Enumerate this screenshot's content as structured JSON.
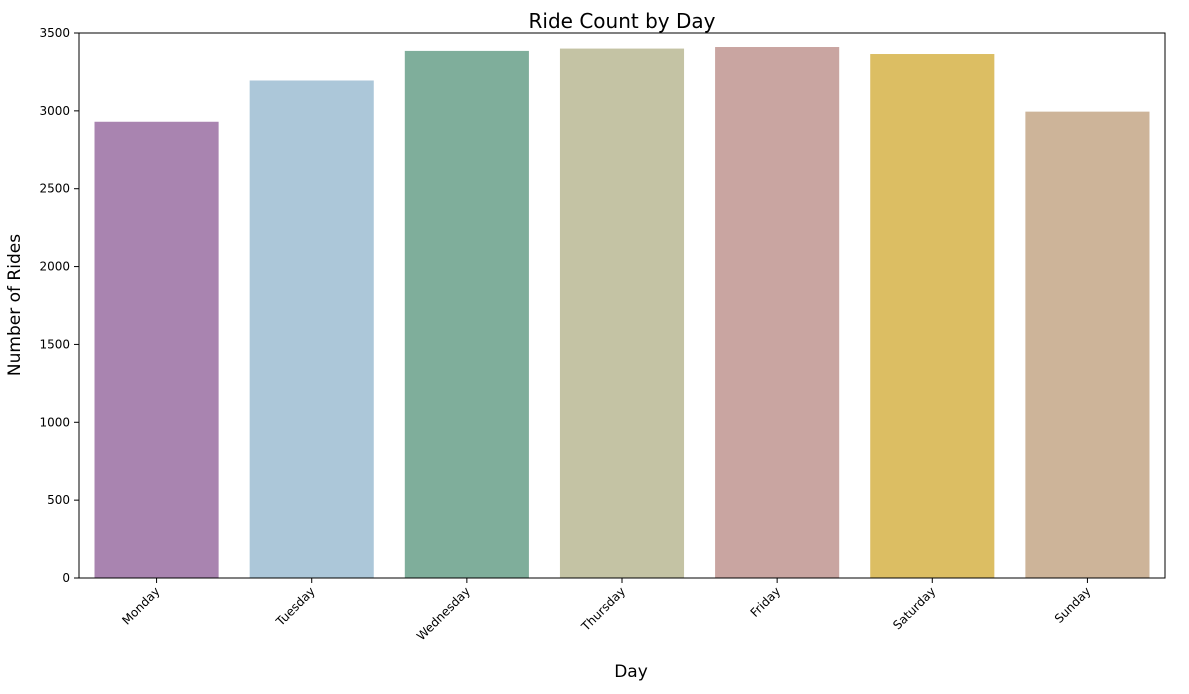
{
  "chart_data": {
    "type": "bar",
    "title": "Ride Count by Day",
    "xlabel": "Day",
    "ylabel": "Number of Rides",
    "categories": [
      "Monday",
      "Tuesday",
      "Wednesday",
      "Thursday",
      "Friday",
      "Saturday",
      "Sunday"
    ],
    "values": [
      2930,
      3195,
      3385,
      3400,
      3410,
      3365,
      2995
    ],
    "colors": [
      "#a984b0",
      "#acc7d9",
      "#7fae9b",
      "#c4c3a4",
      "#c9a5a1",
      "#dcbe63",
      "#cdb499"
    ],
    "ylim": [
      0,
      3500
    ],
    "yticks": [
      0,
      500,
      1000,
      1500,
      2000,
      2500,
      3000,
      3500
    ],
    "grid": false,
    "legend": "none"
  }
}
